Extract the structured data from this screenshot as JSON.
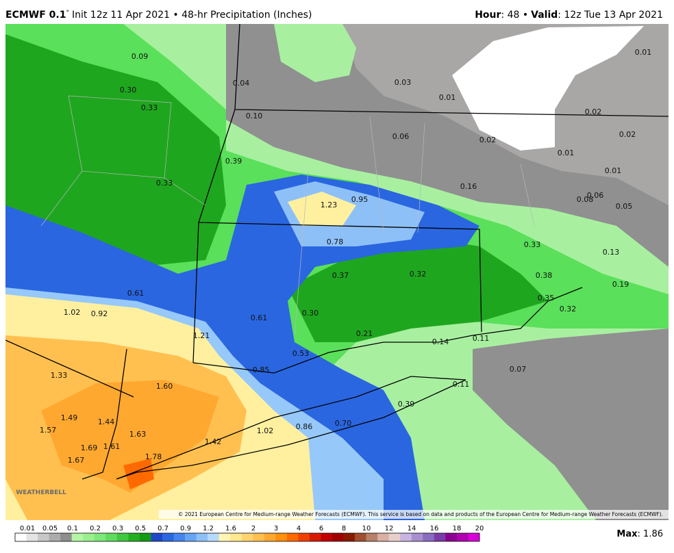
{
  "header": {
    "model": "ECMWF 0.1",
    "degree": "°",
    "init": "Init 12z 11 Apr 2021 • 48-hr Precipitation (Inches)",
    "hour_label": "Hour",
    "hour_value": ": 48 •",
    "valid_label": "Valid",
    "valid_value": ": 12z Tue 13 Apr 2021"
  },
  "map": {
    "labels": [
      "0.09",
      "0.30",
      "0.33",
      "0.04",
      "0.10",
      "0.03",
      "0.01",
      "0.01",
      "0.02",
      "0.02",
      "0.06",
      "0.02",
      "0.01",
      "0.39",
      "0.33",
      "0.01",
      "1.23",
      "0.95",
      "0.16",
      "0.08",
      "0.06",
      "0.05",
      "0.78",
      "0.33",
      "0.13",
      "0.37",
      "0.32",
      "0.38",
      "0.19",
      "0.61",
      "0.35",
      "0.32",
      "1.02",
      "0.92",
      "0.61",
      "0.30",
      "0.21",
      "1.21",
      "0.14",
      "0.11",
      "0.53",
      "1.33",
      "0.85",
      "0.07",
      "1.60",
      "0.11",
      "0.39",
      "1.49",
      "1.44",
      "1.57",
      "1.63",
      "1.02",
      "0.86",
      "0.70",
      "1.42",
      "1.69",
      "1.61",
      "1.78",
      "1.67"
    ]
  },
  "credit": "© 2021 European Centre for Medium-range Weather Forecasts (ECMWF). This service is based on data and products of the European Centre for Medium-range Weather Forecasts (ECMWF).",
  "logo": "WEATHERBELL",
  "colorbar": {
    "ticks": [
      "0.01",
      "0.05",
      "0.1",
      "0.2",
      "0.3",
      "0.5",
      "0.7",
      "0.9",
      "1.2",
      "1.6",
      "2",
      "3",
      "4",
      "6",
      "8",
      "10",
      "12",
      "14",
      "16",
      "18",
      "20"
    ],
    "colors": [
      "#ffffff",
      "#e4e4e4",
      "#c8c8c8",
      "#acacac",
      "#8e8e8e",
      "#b4f5a5",
      "#9aef8e",
      "#7ee87a",
      "#5fdc5f",
      "#40c840",
      "#22b022",
      "#149a14",
      "#1e48c8",
      "#2a66e0",
      "#4684ee",
      "#68a4f4",
      "#8ec0f8",
      "#b6dafc",
      "#fff6b4",
      "#ffe890",
      "#ffd470",
      "#ffc050",
      "#ffa830",
      "#ff9010",
      "#ff6a00",
      "#f04000",
      "#d81a00",
      "#c00000",
      "#a00000",
      "#8a1a00",
      "#a05030",
      "#b8806a",
      "#d8b0a4",
      "#e8d0ca",
      "#c8b4e0",
      "#a890d0",
      "#8a6cc0",
      "#7a3ca8",
      "#8a0090",
      "#b000b0",
      "#d800d8"
    ]
  },
  "max": {
    "label": "Max",
    "value": ": 1.86"
  }
}
